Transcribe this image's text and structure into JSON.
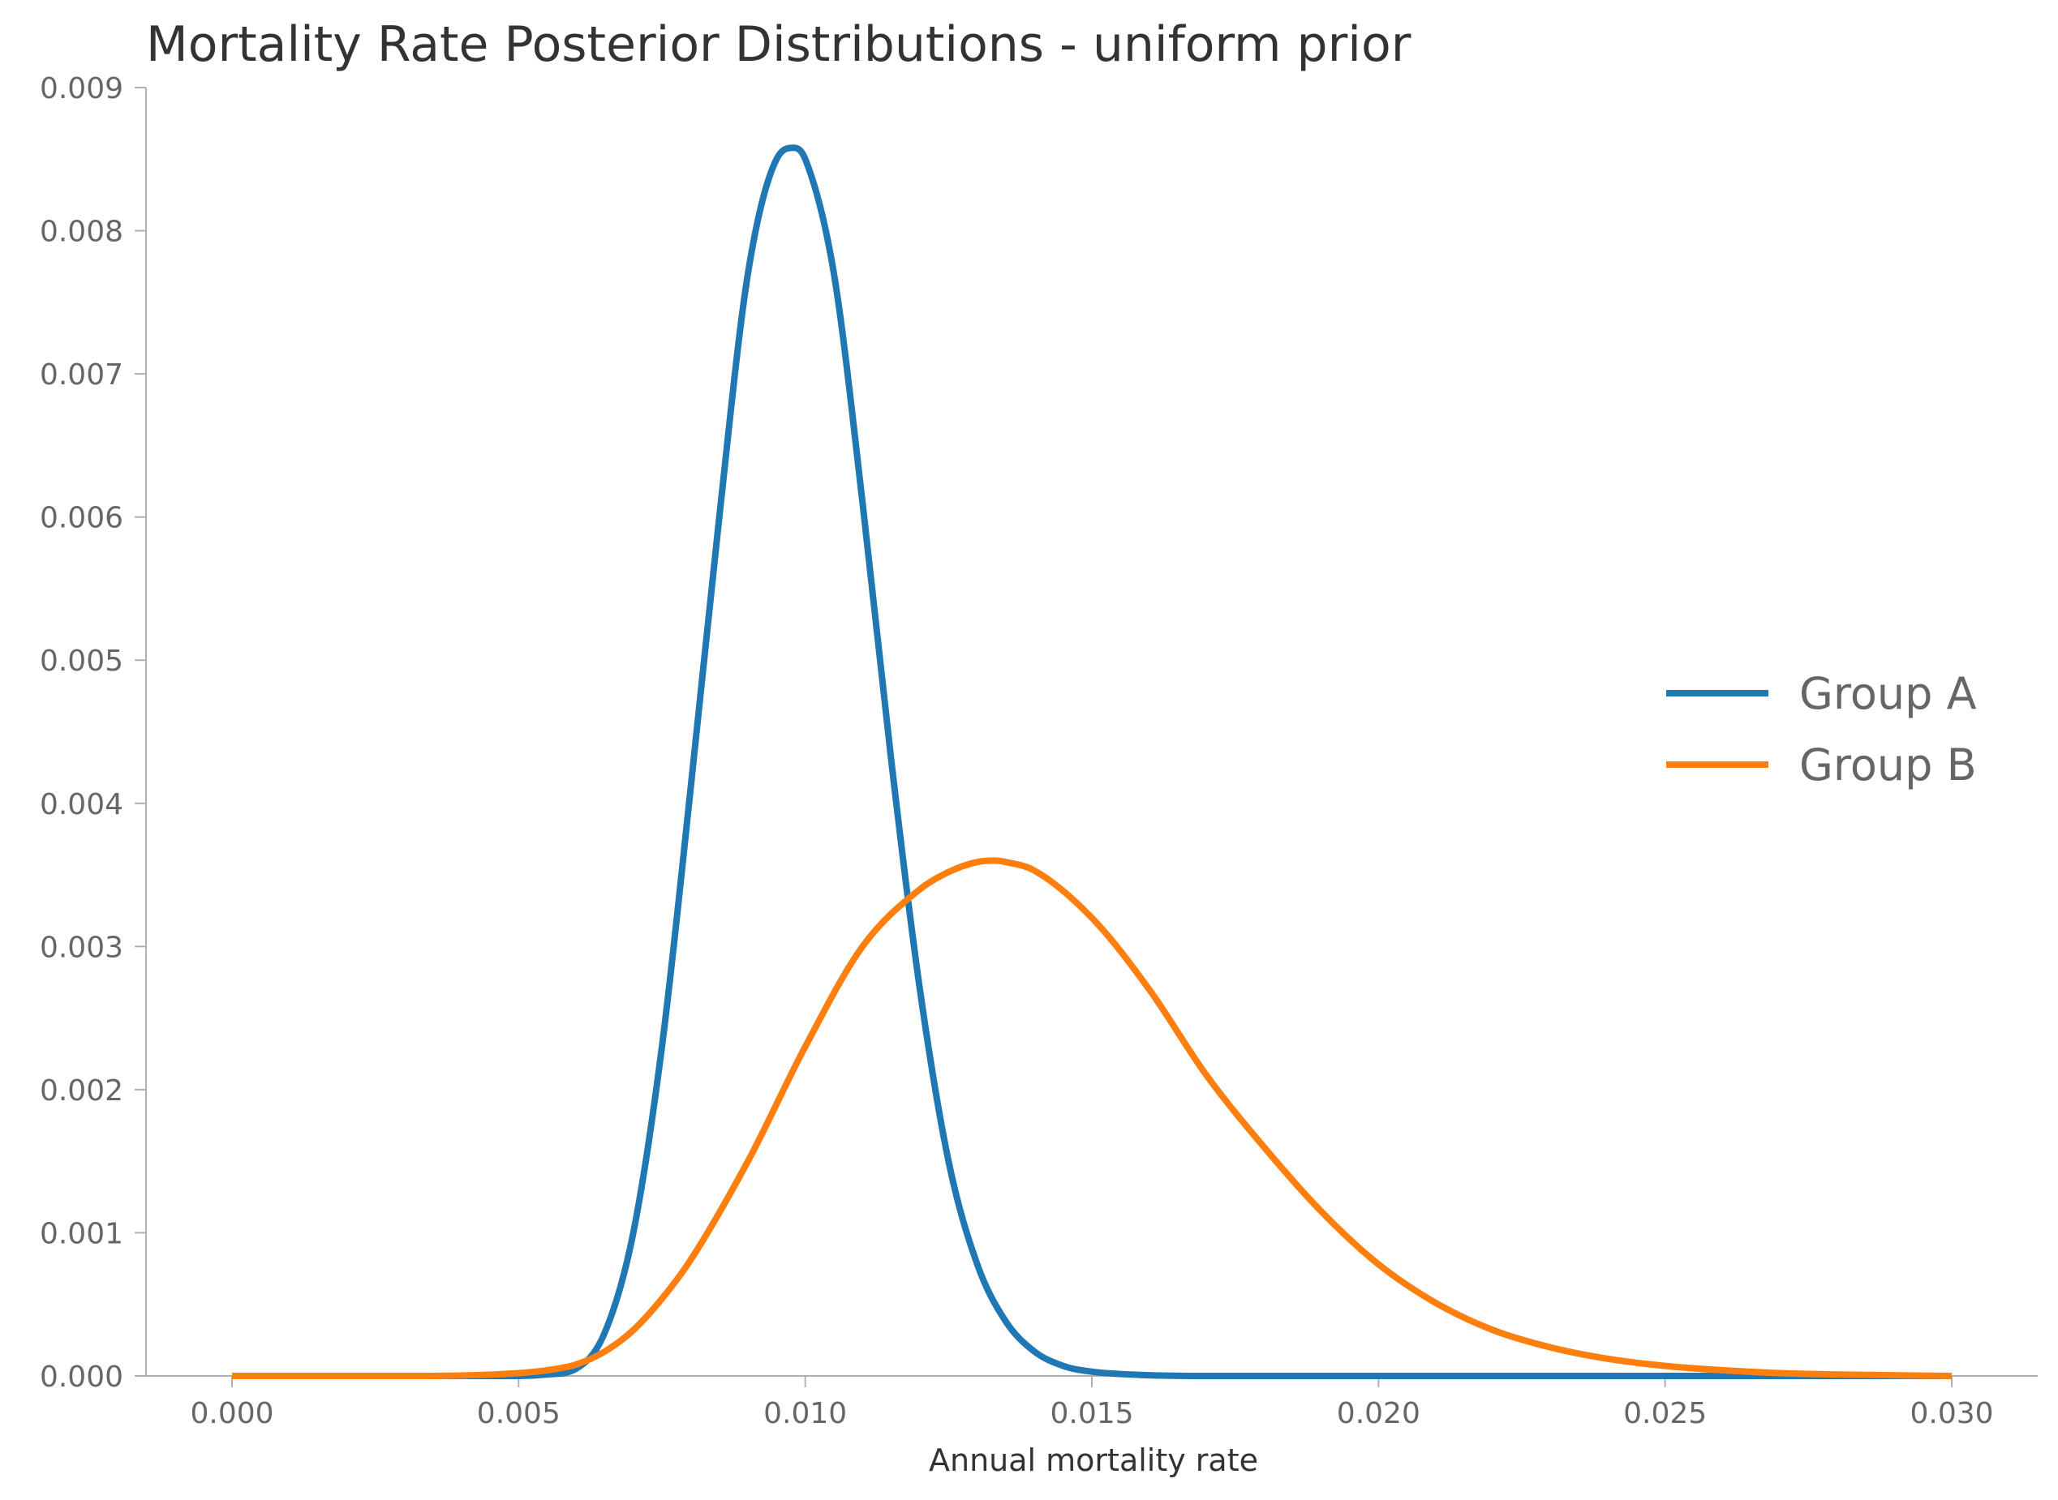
{
  "chart_data": {
    "type": "line",
    "title": "Mortality Rate Posterior Distributions - uniform prior",
    "xlabel": "Annual mortality rate",
    "ylabel": "",
    "xlim": [
      -0.0015,
      0.0315
    ],
    "ylim": [
      0,
      0.009
    ],
    "xticks": [
      "0.000",
      "0.005",
      "0.010",
      "0.015",
      "0.020",
      "0.025",
      "0.030"
    ],
    "yticks": [
      "0.000",
      "0.001",
      "0.002",
      "0.003",
      "0.004",
      "0.005",
      "0.006",
      "0.007",
      "0.008",
      "0.009"
    ],
    "grid": false,
    "legend_position": "center-right",
    "series": [
      {
        "name": "Group A",
        "color": "#1f77b4",
        "x": [
          0.0,
          0.001,
          0.002,
          0.003,
          0.004,
          0.005,
          0.0055,
          0.006,
          0.0065,
          0.007,
          0.0075,
          0.008,
          0.0085,
          0.009,
          0.0095,
          0.0098,
          0.01,
          0.0105,
          0.011,
          0.0115,
          0.012,
          0.0125,
          0.013,
          0.0135,
          0.014,
          0.0145,
          0.015,
          0.016,
          0.017,
          0.018,
          0.02,
          0.022,
          0.025,
          0.03
        ],
        "y": [
          0.0,
          0.0,
          0.0,
          0.0,
          0.0,
          0.0,
          1e-05,
          5e-05,
          0.0003,
          0.001,
          0.0023,
          0.0041,
          0.006,
          0.0077,
          0.0085,
          0.00858,
          0.0085,
          0.0077,
          0.0061,
          0.0043,
          0.0027,
          0.0015,
          0.00078,
          0.00038,
          0.00017,
          7e-05,
          3e-05,
          5e-06,
          0.0,
          0.0,
          0.0,
          0.0,
          0.0,
          0.0
        ]
      },
      {
        "name": "Group B",
        "color": "#ff7f0e",
        "x": [
          0.0,
          0.001,
          0.002,
          0.003,
          0.004,
          0.005,
          0.0055,
          0.006,
          0.0065,
          0.007,
          0.0075,
          0.008,
          0.009,
          0.01,
          0.011,
          0.012,
          0.0125,
          0.013,
          0.0133,
          0.0135,
          0.014,
          0.015,
          0.016,
          0.017,
          0.018,
          0.019,
          0.02,
          0.021,
          0.022,
          0.023,
          0.024,
          0.025,
          0.026,
          0.027,
          0.028,
          0.03
        ],
        "y": [
          0.0,
          0.0,
          0.0,
          0.0,
          3e-06,
          2e-05,
          4e-05,
          8e-05,
          0.00017,
          0.00032,
          0.00054,
          0.00081,
          0.0015,
          0.0023,
          0.003,
          0.0034,
          0.00352,
          0.00359,
          0.0036,
          0.00359,
          0.00353,
          0.0032,
          0.0027,
          0.0021,
          0.0016,
          0.00115,
          0.00078,
          0.00051,
          0.00032,
          0.0002,
          0.00012,
          7e-05,
          4e-05,
          2e-05,
          1e-05,
          0.0
        ]
      }
    ]
  }
}
